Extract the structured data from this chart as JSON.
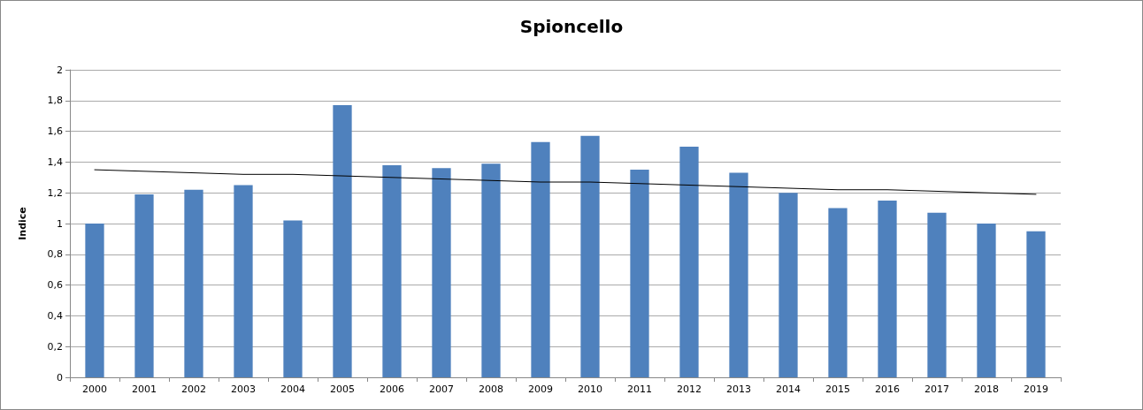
{
  "chart_data": {
    "type": "bar",
    "title": "Spioncello",
    "ylabel": "Indice",
    "categories": [
      "2000",
      "2001",
      "2002",
      "2003",
      "2004",
      "2005",
      "2006",
      "2007",
      "2008",
      "2009",
      "2010",
      "2011",
      "2012",
      "2013",
      "2014",
      "2015",
      "2016",
      "2017",
      "2018",
      "2019"
    ],
    "series": [
      {
        "color": "#4f81bd",
        "values": [
          1.0,
          1.19,
          1.22,
          1.25,
          1.02,
          1.77,
          1.38,
          1.36,
          1.39,
          1.53,
          1.57,
          1.35,
          1.5,
          1.33,
          1.2,
          1.1,
          1.15,
          1.07,
          1.0,
          0.95
        ]
      },
      {
        "type": "line",
        "color": "#000000",
        "values": [
          1.35,
          1.34,
          1.33,
          1.32,
          1.32,
          1.31,
          1.3,
          1.29,
          1.28,
          1.27,
          1.27,
          1.26,
          1.25,
          1.24,
          1.23,
          1.22,
          1.22,
          1.21,
          1.2,
          1.19
        ],
        "marker": "none",
        "line_style": "solid"
      }
    ],
    "ylim": [
      0,
      2
    ],
    "yticks": [
      0,
      {
        "value": 0.2,
        "label": "0,2"
      },
      {
        "value": 0.4,
        "label": "0,4"
      },
      {
        "value": 0.6,
        "label": "0,6"
      },
      {
        "value": 0.8,
        "label": "0,8"
      },
      1,
      {
        "value": 1.2,
        "label": "1,2"
      },
      {
        "value": 1.4,
        "label": "1,4"
      },
      {
        "value": 1.6,
        "label": "1,6"
      },
      {
        "value": 1.8,
        "label": "1,8"
      },
      2
    ],
    "grid": "y"
  }
}
